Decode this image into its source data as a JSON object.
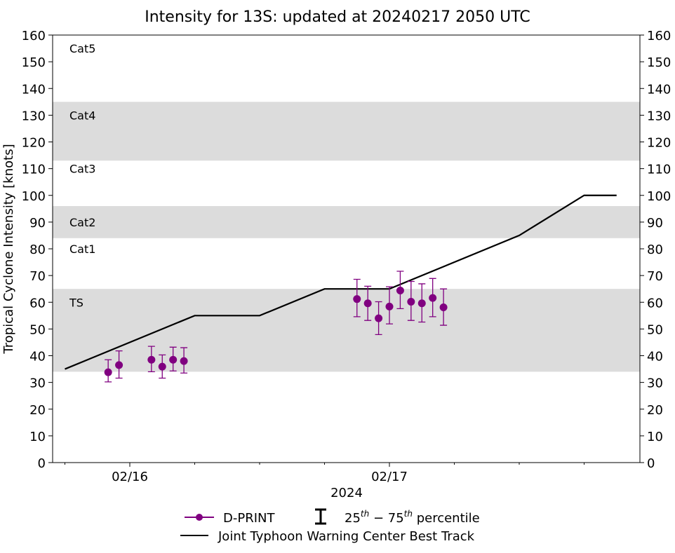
{
  "chart_data": {
    "type": "line",
    "title": "Intensity for 13S: updated at 20240217 2050 UTC",
    "ylabel": "Tropical Cyclone Intensity [knots]",
    "xlabel": "2024",
    "ylim": [
      0,
      160
    ],
    "yticks": [
      0,
      10,
      20,
      30,
      40,
      50,
      60,
      70,
      80,
      90,
      100,
      110,
      120,
      130,
      140,
      150,
      160
    ],
    "xlim": [
      "2024-02-15T16:00",
      "2024-02-17T23:30"
    ],
    "xticks": [
      {
        "t": "2024-02-16T00:00",
        "label": "02/16"
      },
      {
        "t": "2024-02-17T00:00",
        "label": "02/17"
      }
    ],
    "grid": false,
    "legend_placement": "bottom",
    "category_bands": [
      {
        "label": "TS",
        "range": [
          34,
          65
        ],
        "shaded": true,
        "label_y": 60
      },
      {
        "label": "Cat1",
        "range": [
          65,
          84
        ],
        "shaded": false,
        "label_y": 80
      },
      {
        "label": "Cat2",
        "range": [
          84,
          96
        ],
        "shaded": true,
        "label_y": 90
      },
      {
        "label": "Cat3",
        "range": [
          96,
          113
        ],
        "shaded": false,
        "label_y": 110
      },
      {
        "label": "Cat4",
        "range": [
          113,
          135
        ],
        "shaded": true,
        "label_y": 130
      },
      {
        "label": "Cat5",
        "range": [
          135,
          160
        ],
        "shaded": false,
        "label_y": 155
      }
    ],
    "series": [
      {
        "name": "D-PRINT",
        "color": "#800080",
        "marker": "circle",
        "points": [
          {
            "t": "2024-02-15T22:00",
            "y": 33.8,
            "p25": 30.2,
            "p75": 38.5
          },
          {
            "t": "2024-02-15T23:00",
            "y": 36.5,
            "p25": 31.6,
            "p75": 41.8
          },
          {
            "t": "2024-02-16T02:00",
            "y": 38.5,
            "p25": 34.0,
            "p75": 43.5
          },
          {
            "t": "2024-02-16T03:00",
            "y": 35.9,
            "p25": 31.6,
            "p75": 40.3
          },
          {
            "t": "2024-02-16T04:00",
            "y": 38.5,
            "p25": 34.3,
            "p75": 43.2
          },
          {
            "t": "2024-02-16T05:00",
            "y": 38.0,
            "p25": 33.5,
            "p75": 43.0
          },
          {
            "t": "2024-02-16T21:00",
            "y": 61.2,
            "p25": 54.6,
            "p75": 68.6
          },
          {
            "t": "2024-02-16T22:00",
            "y": 59.6,
            "p25": 53.2,
            "p75": 66.0
          },
          {
            "t": "2024-02-16T23:00",
            "y": 54.0,
            "p25": 47.9,
            "p75": 60.2
          },
          {
            "t": "2024-02-17T00:00",
            "y": 58.4,
            "p25": 51.9,
            "p75": 65.8
          },
          {
            "t": "2024-02-17T01:00",
            "y": 64.4,
            "p25": 57.6,
            "p75": 71.6
          },
          {
            "t": "2024-02-17T02:00",
            "y": 60.2,
            "p25": 53.2,
            "p75": 67.8
          },
          {
            "t": "2024-02-17T03:00",
            "y": 59.6,
            "p25": 52.6,
            "p75": 66.9
          },
          {
            "t": "2024-02-17T04:00",
            "y": 61.6,
            "p25": 54.6,
            "p75": 68.9
          },
          {
            "t": "2024-02-17T05:00",
            "y": 58.1,
            "p25": 51.4,
            "p75": 65.0
          }
        ]
      },
      {
        "name": "Joint Typhoon Warning Center Best Track",
        "color": "#000000",
        "points": [
          {
            "t": "2024-02-15T18:00",
            "y": 35
          },
          {
            "t": "2024-02-16T06:00",
            "y": 55
          },
          {
            "t": "2024-02-16T12:00",
            "y": 55
          },
          {
            "t": "2024-02-16T18:00",
            "y": 65
          },
          {
            "t": "2024-02-17T00:00",
            "y": 65
          },
          {
            "t": "2024-02-17T12:00",
            "y": 85
          },
          {
            "t": "2024-02-17T18:00",
            "y": 100
          },
          {
            "t": "2024-02-17T21:00",
            "y": 100
          }
        ]
      }
    ],
    "legend": {
      "dprint": "D-PRINT",
      "percentile_pre": "25",
      "percentile_sup1": "th",
      "percentile_mid": " − 75",
      "percentile_sup2": "th",
      "percentile_post": " percentile",
      "best_track": "Joint Typhoon Warning Center Best Track"
    }
  }
}
